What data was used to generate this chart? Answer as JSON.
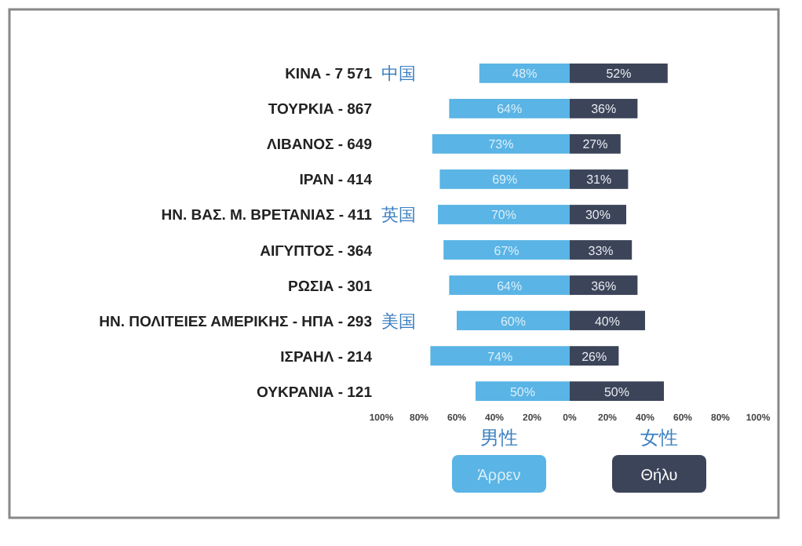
{
  "chart_data": {
    "type": "bar",
    "orientation": "horizontal",
    "categories": [
      "ΚΙΝΑ - 7 571",
      "ΤΟΥΡΚΙΑ - 867",
      "ΛΙΒΑΝΟΣ - 649",
      "ΙΡΑΝ - 414",
      "ΗΝ. ΒΑΣ. Μ. ΒΡΕΤΑΝΙΑΣ - 411",
      "ΑΙΓΥΠΤΟΣ - 364",
      "ΡΩΣΙΑ - 301",
      "ΗΝ. ΠΟΛΙΤΕΙΕΣ ΑΜΕΡΙΚΗΣ - ΗΠΑ - 293",
      "ΙΣΡΑΗΛ - 214",
      "ΟΥΚΡΑΝΙΑ - 121"
    ],
    "series": [
      {
        "name": "Άρρεν",
        "color": "#5ab4e5",
        "values": [
          48,
          64,
          73,
          69,
          70,
          67,
          64,
          60,
          74,
          50
        ],
        "base": [
          -48,
          -64,
          -73,
          -69,
          -70,
          -67,
          -64,
          -60,
          -74,
          -50
        ],
        "value_labels": [
          "48%",
          "64%",
          "73%",
          "69%",
          "70%",
          "67%",
          "64%",
          "60%",
          "74%",
          "50%"
        ]
      },
      {
        "name": "Θήλυ",
        "color": "#3b4458",
        "values": [
          52,
          36,
          27,
          31,
          30,
          33,
          36,
          40,
          26,
          50
        ],
        "value_labels": [
          "52%",
          "36%",
          "27%",
          "31%",
          "30%",
          "33%",
          "36%",
          "40%",
          "26%",
          "50%"
        ]
      }
    ],
    "xlim": [
      -100,
      100
    ],
    "xticks": [
      {
        "value": -100,
        "label": "100%"
      },
      {
        "value": -80,
        "label": "80%"
      },
      {
        "value": -60,
        "label": "60%"
      },
      {
        "value": -40,
        "label": "40%"
      },
      {
        "value": -20,
        "label": "20%"
      },
      {
        "value": 0,
        "label": "0%"
      },
      {
        "value": 20,
        "label": "20%"
      },
      {
        "value": 40,
        "label": "40%"
      },
      {
        "value": 60,
        "label": "60%"
      },
      {
        "value": 80,
        "label": "80%"
      },
      {
        "value": 100,
        "label": "100%"
      }
    ],
    "grid": false,
    "legend": "bottom",
    "annotations": [
      "中国",
      "英国",
      "美国",
      "男性",
      "女性"
    ]
  }
}
